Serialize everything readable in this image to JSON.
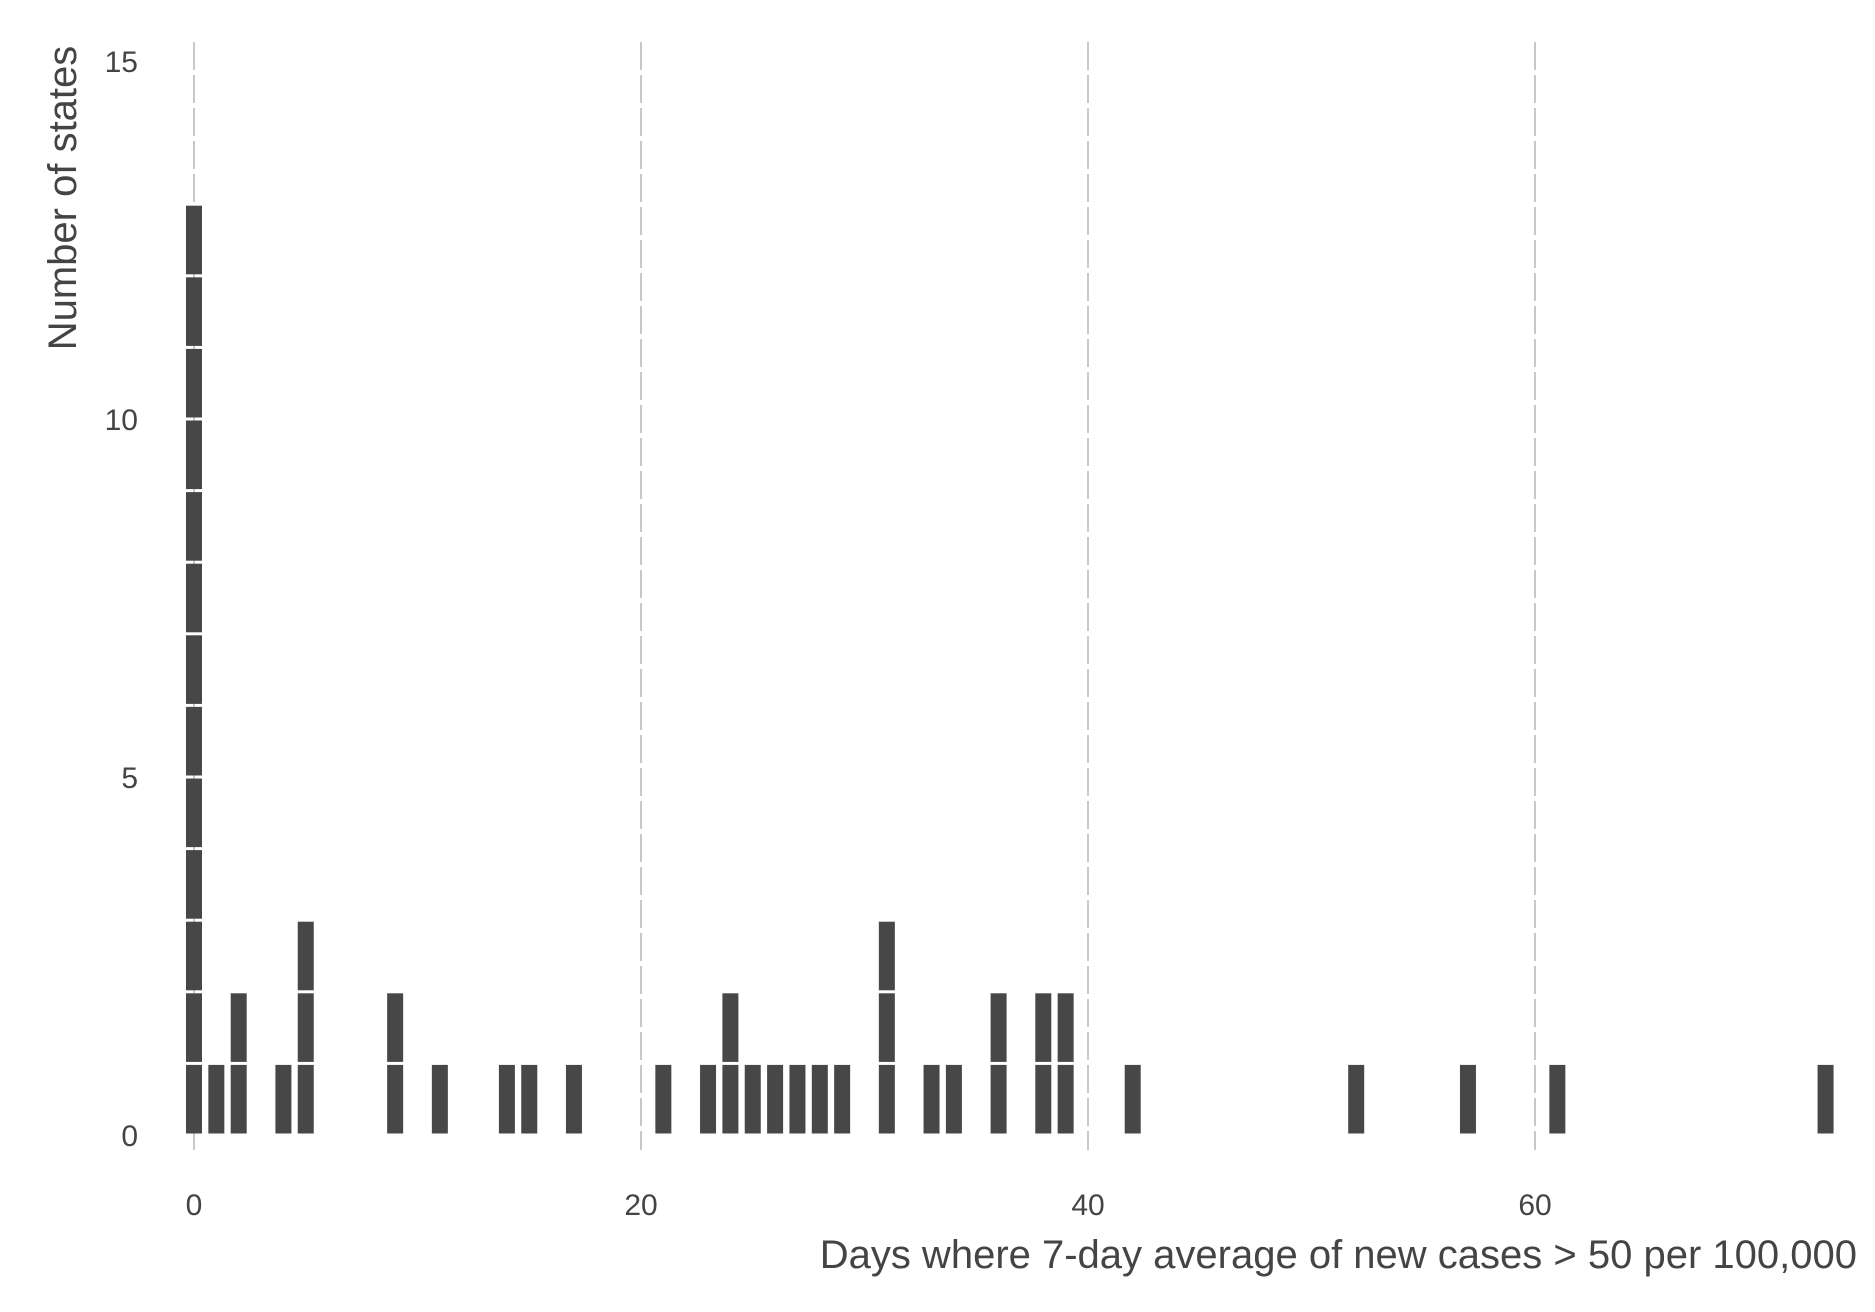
{
  "chart_data": {
    "type": "bar",
    "title": "",
    "xlabel": "Days where 7-day average of new cases > 50 per 100,000",
    "ylabel": "Number of states",
    "xlim": [
      -0.5,
      73.5
    ],
    "ylim": [
      0,
      15
    ],
    "xticks": [
      0,
      20,
      40,
      60
    ],
    "yticks": [
      0,
      5,
      10,
      15
    ],
    "x_gridlines": true,
    "gridline_style": "dashed",
    "bar_color": "#474747",
    "stacked_units": true,
    "bars": [
      {
        "x": 0,
        "count": 13
      },
      {
        "x": 1,
        "count": 1
      },
      {
        "x": 2,
        "count": 2
      },
      {
        "x": 4,
        "count": 1
      },
      {
        "x": 5,
        "count": 3
      },
      {
        "x": 9,
        "count": 2
      },
      {
        "x": 11,
        "count": 1
      },
      {
        "x": 14,
        "count": 1
      },
      {
        "x": 15,
        "count": 1
      },
      {
        "x": 17,
        "count": 1
      },
      {
        "x": 21,
        "count": 1
      },
      {
        "x": 23,
        "count": 1
      },
      {
        "x": 24,
        "count": 2
      },
      {
        "x": 25,
        "count": 1
      },
      {
        "x": 26,
        "count": 1
      },
      {
        "x": 27,
        "count": 1
      },
      {
        "x": 28,
        "count": 1
      },
      {
        "x": 29,
        "count": 1
      },
      {
        "x": 31,
        "count": 3
      },
      {
        "x": 33,
        "count": 1
      },
      {
        "x": 34,
        "count": 1
      },
      {
        "x": 36,
        "count": 2
      },
      {
        "x": 38,
        "count": 2
      },
      {
        "x": 39,
        "count": 2
      },
      {
        "x": 42,
        "count": 1
      },
      {
        "x": 52,
        "count": 1
      },
      {
        "x": 57,
        "count": 1
      },
      {
        "x": 61,
        "count": 1
      },
      {
        "x": 73,
        "count": 1
      }
    ]
  }
}
